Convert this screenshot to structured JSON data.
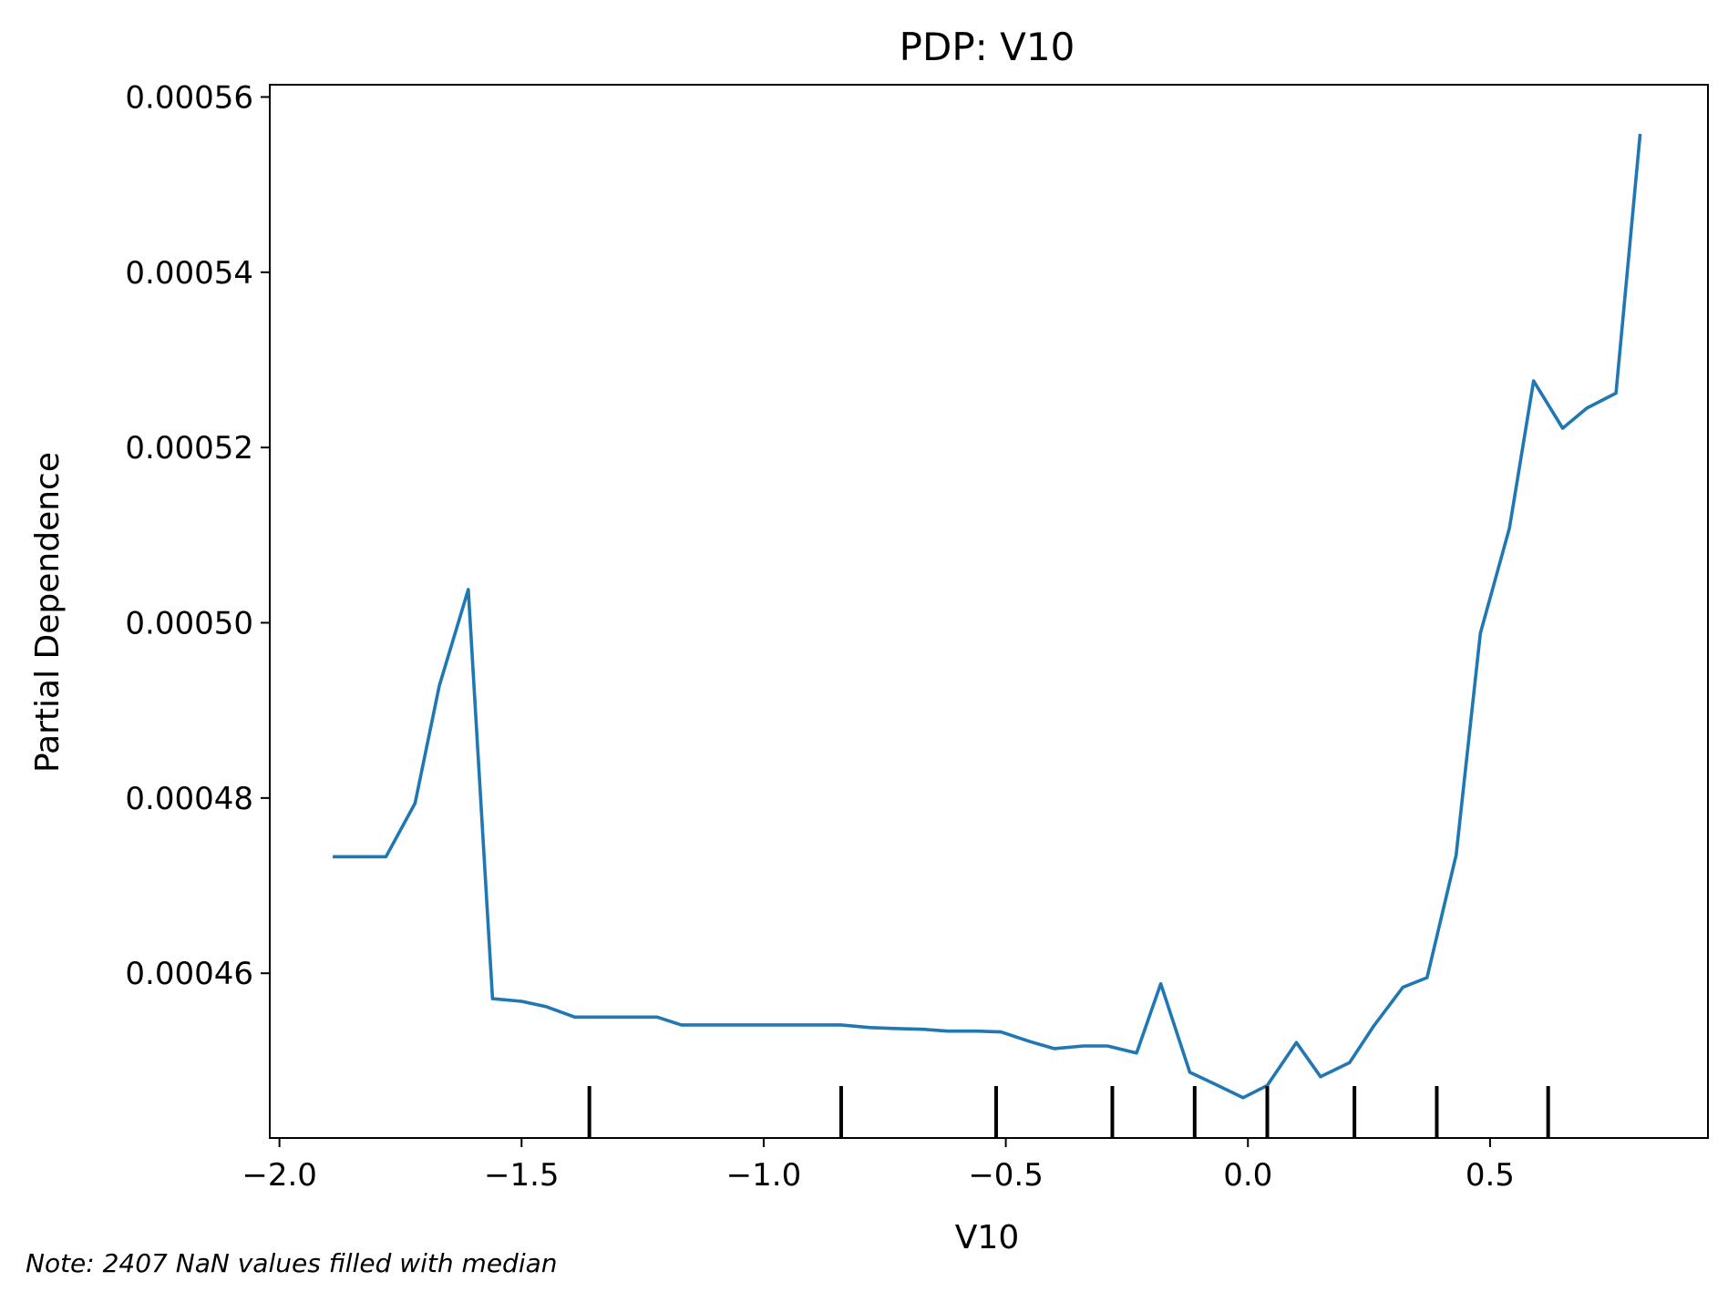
{
  "chart_data": {
    "type": "line",
    "title": "PDP: V10",
    "xlabel": "V10",
    "ylabel": "Partial Dependence",
    "xlim": [
      -2.02,
      0.95
    ],
    "ylim": [
      0.0004412,
      0.0005614
    ],
    "xticks": [
      -2.0,
      -1.5,
      -1.0,
      -0.5,
      0.0,
      0.5
    ],
    "xtick_labels": [
      "−2.0",
      "−1.5",
      "−1.0",
      "−0.5",
      "0.0",
      "0.5"
    ],
    "yticks": [
      0.00046,
      0.00048,
      0.0005,
      0.00052,
      0.00054,
      0.00056
    ],
    "ytick_labels": [
      "0.00046",
      "0.00048",
      "0.00050",
      "0.00052",
      "0.00054",
      "0.00056"
    ],
    "grid": false,
    "series": [
      {
        "color": "#1f77b4",
        "x": [
          -1.89,
          -1.78,
          -1.72,
          -1.67,
          -1.61,
          -1.56,
          -1.5,
          -1.45,
          -1.39,
          -1.33,
          -1.28,
          -1.22,
          -1.17,
          -1.11,
          -1.06,
          -1.0,
          -0.95,
          -0.89,
          -0.84,
          -0.78,
          -0.73,
          -0.67,
          -0.62,
          -0.56,
          -0.51,
          -0.45,
          -0.4,
          -0.34,
          -0.29,
          -0.23,
          -0.18,
          -0.12,
          -0.07,
          -0.01,
          0.04,
          0.1,
          0.15,
          0.21,
          0.26,
          0.32,
          0.37,
          0.43,
          0.48,
          0.54,
          0.59,
          0.65,
          0.7,
          0.76,
          0.81
        ],
        "y": [
          0.0004733,
          0.0004733,
          0.0004794,
          0.0004928,
          0.0005038,
          0.0004571,
          0.0004568,
          0.0004562,
          0.000455,
          0.000455,
          0.000455,
          0.000455,
          0.0004541,
          0.0004541,
          0.0004541,
          0.0004541,
          0.0004541,
          0.0004541,
          0.0004541,
          0.0004538,
          0.0004537,
          0.0004536,
          0.0004534,
          0.0004534,
          0.0004533,
          0.0004522,
          0.0004514,
          0.0004517,
          0.0004517,
          0.0004509,
          0.0004588,
          0.0004487,
          0.0004474,
          0.0004458,
          0.0004472,
          0.0004521,
          0.0004482,
          0.0004498,
          0.000454,
          0.0004584,
          0.0004595,
          0.0004735,
          0.0004988,
          0.0005108,
          0.0005276,
          0.0005222,
          0.0005245,
          0.0005262,
          0.0005558
        ]
      }
    ],
    "rug_x": [
      -1.36,
      -0.84,
      -0.52,
      -0.28,
      -0.11,
      0.04,
      0.22,
      0.39,
      0.62
    ],
    "note": "Note: 2407 NaN values filled with median"
  }
}
